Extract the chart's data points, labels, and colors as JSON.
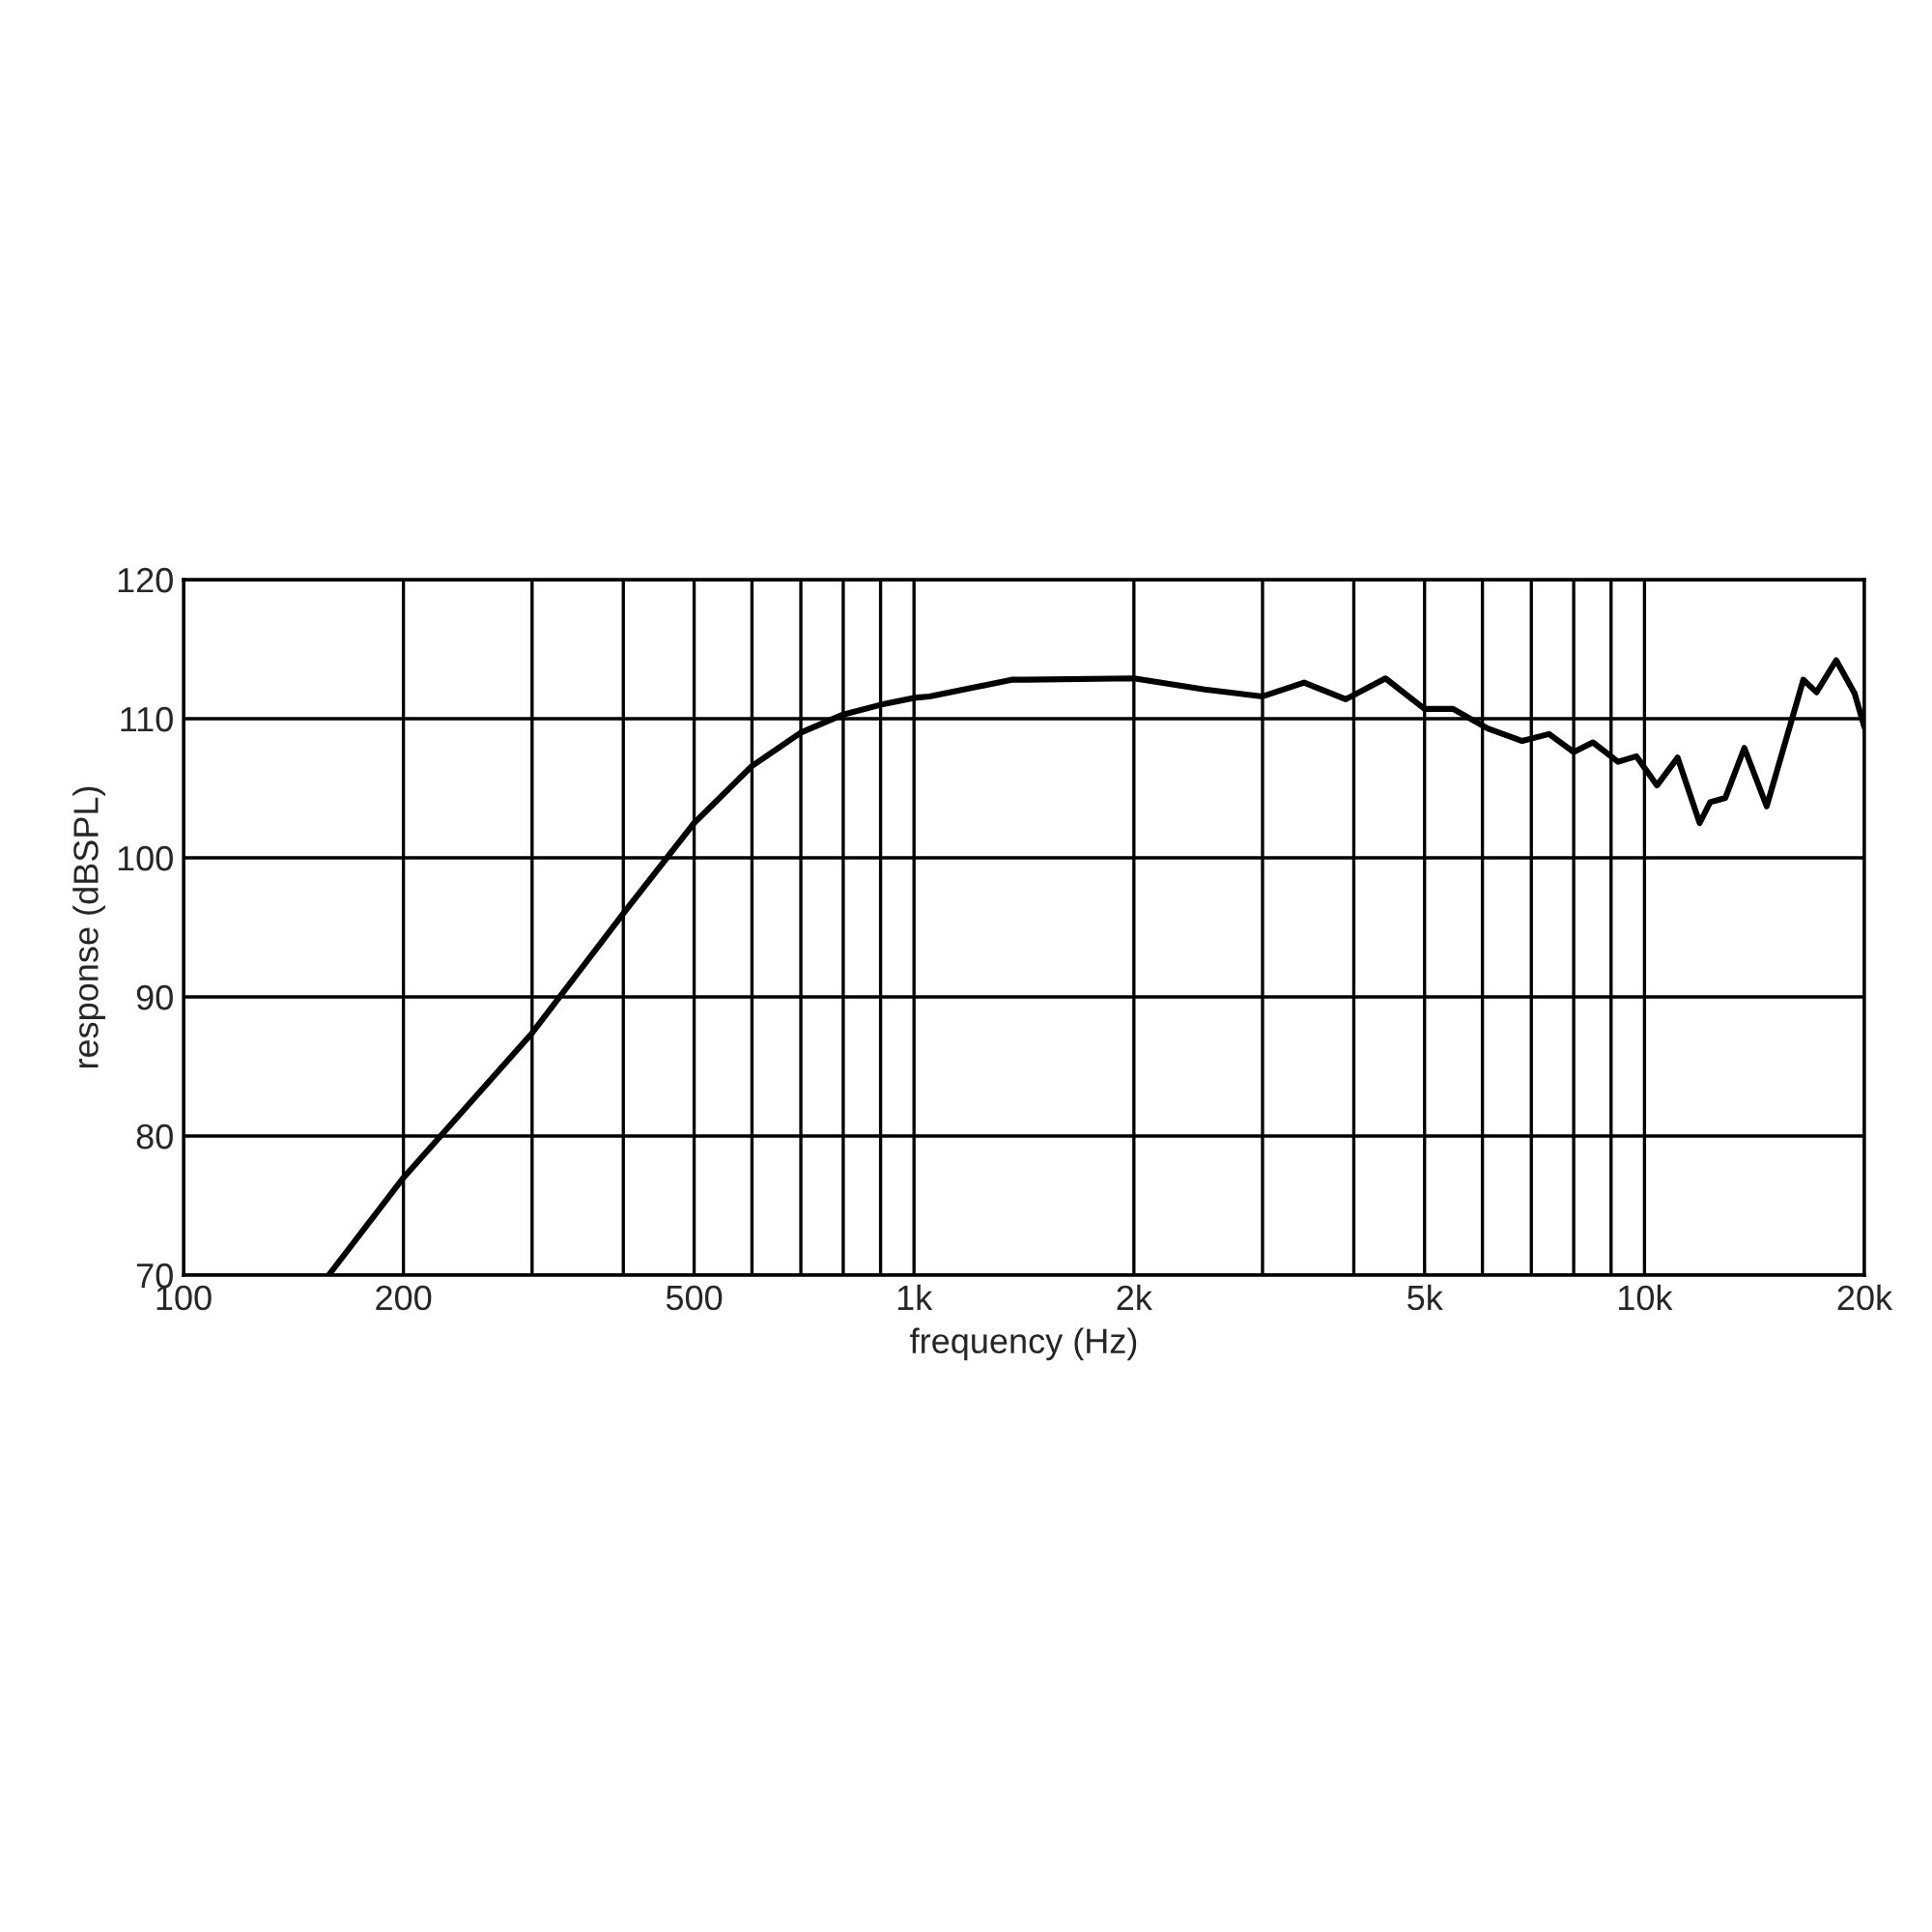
{
  "chart_data": {
    "type": "line",
    "xlabel": "frequency (Hz)",
    "ylabel": "response (dBSPL)",
    "log": "x",
    "xlim": [
      100,
      20000
    ],
    "ylim": [
      70,
      120
    ],
    "xticks": [
      100,
      200,
      {
        "value": 300,
        "label": null
      },
      {
        "value": 400,
        "label": null
      },
      500,
      {
        "value": 600,
        "label": null
      },
      {
        "value": 700,
        "label": null
      },
      {
        "value": 800,
        "label": null
      },
      {
        "value": 900,
        "label": null
      },
      {
        "value": 1000,
        "label": "1k"
      },
      {
        "value": 2000,
        "label": "2k"
      },
      {
        "value": 3000,
        "label": null
      },
      {
        "value": 4000,
        "label": null
      },
      {
        "value": 5000,
        "label": "5k"
      },
      {
        "value": 6000,
        "label": null
      },
      {
        "value": 7000,
        "label": null
      },
      {
        "value": 8000,
        "label": null
      },
      {
        "value": 9000,
        "label": null
      },
      {
        "value": 10000,
        "label": "10k"
      },
      {
        "value": 20000,
        "label": "20k"
      }
    ],
    "yticks": [
      70,
      80,
      90,
      100,
      110,
      120
    ],
    "grid": true,
    "marker": "none",
    "line_style": "solid",
    "series": [
      {
        "color": "#000000",
        "x": [
          158,
          200,
          300,
          400,
          500,
          600,
          700,
          800,
          900,
          1000,
          1050,
          1360,
          1420,
          2000,
          2500,
          3000,
          3420,
          3900,
          4420,
          5000,
          5470,
          6100,
          6800,
          7400,
          8000,
          8500,
          9200,
          9750,
          10400,
          11100,
          11900,
          12300,
          12900,
          13700,
          14700,
          16500,
          17200,
          18300,
          19400,
          20000
        ],
        "values": [
          70,
          77,
          87.4,
          96,
          102.5,
          106.6,
          109,
          110.3,
          111,
          111.5,
          111.6,
          112.8,
          112.8,
          112.9,
          112.1,
          111.6,
          112.6,
          111.4,
          112.9,
          110.7,
          110.7,
          109.3,
          108.4,
          108.9,
          107.6,
          108.3,
          106.9,
          107.3,
          105.2,
          107.2,
          102.5,
          104,
          104.3,
          107.9,
          103.7,
          112.8,
          111.9,
          114.2,
          111.8,
          109.4
        ]
      }
    ]
  }
}
